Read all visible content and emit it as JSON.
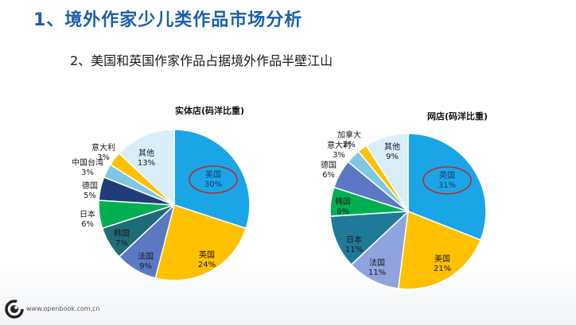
{
  "slide": {
    "title": "1、境外作家少儿类作品市场分析",
    "subtitle": "2、美国和英国作家作品占据境外作品半壁江山",
    "footer": "www.openbook.com.cn"
  },
  "chart_data": [
    {
      "type": "pie",
      "title": "实体店(码洋比重)",
      "highlight": "美国",
      "slices": [
        {
          "label": "美国",
          "pct_label": "30%",
          "value": 30,
          "color": "#1aa6e6"
        },
        {
          "label": "英国",
          "pct_label": "24%",
          "value": 24,
          "color": "#ffc000"
        },
        {
          "label": "法国",
          "pct_label": "9%",
          "value": 9,
          "color": "#5b79c2"
        },
        {
          "label": "韩国",
          "pct_label": "7%",
          "value": 7,
          "color": "#1f6b78"
        },
        {
          "label": "日本",
          "pct_label": "6%",
          "value": 6,
          "color": "#00b050"
        },
        {
          "label": "德国",
          "pct_label": "5%",
          "value": 5,
          "color": "#1f3e79"
        },
        {
          "label": "中国台湾",
          "pct_label": "3%",
          "value": 3,
          "color": "#7ec8e3"
        },
        {
          "label": "意大利",
          "pct_label": "3%",
          "value": 3,
          "color": "#ffc000"
        },
        {
          "label": "其他",
          "pct_label": "13%",
          "value": 13,
          "color": "#d9eef9"
        }
      ]
    },
    {
      "type": "pie",
      "title": "网店(码洋比重)",
      "highlight": "英国",
      "slices": [
        {
          "label": "英国",
          "pct_label": "31%",
          "value": 31,
          "color": "#1aa6e6"
        },
        {
          "label": "美国",
          "pct_label": "21%",
          "value": 21,
          "color": "#ffc000"
        },
        {
          "label": "法国",
          "pct_label": "11%",
          "value": 11,
          "color": "#8fa3df"
        },
        {
          "label": "日本",
          "pct_label": "11%",
          "value": 11,
          "color": "#1f7a9a"
        },
        {
          "label": "韩国",
          "pct_label": "6%",
          "value": 6,
          "color": "#00b050"
        },
        {
          "label": "德国",
          "pct_label": "6%",
          "value": 6,
          "color": "#5b79c2"
        },
        {
          "label": "意大利",
          "pct_label": "3%",
          "value": 3,
          "color": "#7ec8e3"
        },
        {
          "label": "加拿大",
          "pct_label": "2%",
          "value": 2,
          "color": "#ffc000"
        },
        {
          "label": "其他",
          "pct_label": "9%",
          "value": 9,
          "color": "#d9eef9"
        }
      ]
    }
  ]
}
